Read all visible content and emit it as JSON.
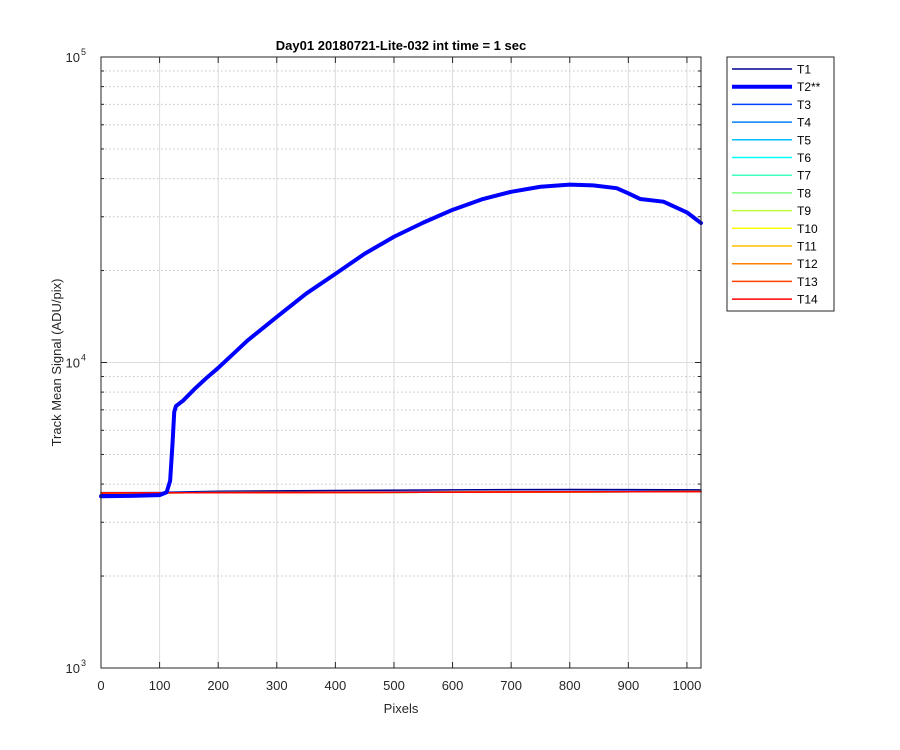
{
  "chart_data": {
    "type": "line",
    "title": "Day01 20180721-Lite-032 int time = 1 sec",
    "xlabel": "Pixels",
    "ylabel": "Track Mean Signal (ADU/pix)",
    "xlim": [
      0,
      1024
    ],
    "ylim": [
      1000,
      100000
    ],
    "yscale": "log",
    "grid": true,
    "legend_position": "outside-top-right",
    "x_ticks": [
      0,
      100,
      200,
      300,
      400,
      500,
      600,
      700,
      800,
      900,
      1000
    ],
    "x_tick_labels": [
      "0",
      "100",
      "200",
      "300",
      "400",
      "500",
      "600",
      "700",
      "800",
      "900",
      "1000"
    ],
    "y_tick_labels": [
      {
        "value": 1000,
        "base": "10",
        "exp": "3"
      },
      {
        "value": 10000,
        "base": "10",
        "exp": "4"
      },
      {
        "value": 100000,
        "base": "10",
        "exp": "5"
      }
    ],
    "series": [
      {
        "name": "T1",
        "color": "#00008f",
        "width": 1.5,
        "x": [
          0,
          100,
          112,
          200,
          400,
          600,
          800,
          1024
        ],
        "y": [
          3700,
          3720,
          3760,
          3790,
          3810,
          3830,
          3840,
          3830
        ]
      },
      {
        "name": "T2**",
        "color": "#0000ff",
        "width": 4,
        "x": [
          0,
          50,
          100,
          112,
          118,
          122,
          125,
          128,
          140,
          160,
          180,
          200,
          250,
          300,
          350,
          400,
          450,
          500,
          550,
          600,
          650,
          700,
          750,
          800,
          840,
          880,
          900,
          920,
          960,
          1000,
          1024
        ],
        "y": [
          3650,
          3660,
          3680,
          3760,
          4100,
          5400,
          6900,
          7200,
          7500,
          8200,
          8900,
          9600,
          11800,
          14100,
          16800,
          19500,
          22700,
          25800,
          28700,
          31600,
          34200,
          36200,
          37600,
          38200,
          38000,
          37200,
          35800,
          34300,
          33600,
          31000,
          28600
        ]
      },
      {
        "name": "T3",
        "color": "#0040ff",
        "width": 1.5,
        "x": [
          0,
          1024
        ],
        "y": [
          3750,
          3790
        ]
      },
      {
        "name": "T4",
        "color": "#0080ff",
        "width": 1.5,
        "x": [
          0,
          1024
        ],
        "y": [
          3740,
          3780
        ]
      },
      {
        "name": "T5",
        "color": "#00bfff",
        "width": 1.5,
        "x": [
          0,
          1024
        ],
        "y": [
          3740,
          3780
        ]
      },
      {
        "name": "T6",
        "color": "#00ffff",
        "width": 1.5,
        "x": [
          0,
          1024
        ],
        "y": [
          3740,
          3780
        ]
      },
      {
        "name": "T7",
        "color": "#40ffbf",
        "width": 1.5,
        "x": [
          0,
          1024
        ],
        "y": [
          3740,
          3780
        ]
      },
      {
        "name": "T8",
        "color": "#80ff80",
        "width": 1.5,
        "x": [
          0,
          1024
        ],
        "y": [
          3740,
          3780
        ]
      },
      {
        "name": "T9",
        "color": "#bfff40",
        "width": 1.5,
        "x": [
          0,
          1024
        ],
        "y": [
          3740,
          3780
        ]
      },
      {
        "name": "T10",
        "color": "#ffff00",
        "width": 1.5,
        "x": [
          0,
          1024
        ],
        "y": [
          3740,
          3780
        ]
      },
      {
        "name": "T11",
        "color": "#ffbf00",
        "width": 1.5,
        "x": [
          0,
          1024
        ],
        "y": [
          3740,
          3780
        ]
      },
      {
        "name": "T12",
        "color": "#ff8000",
        "width": 1.5,
        "x": [
          0,
          1024
        ],
        "y": [
          3740,
          3780
        ]
      },
      {
        "name": "T13",
        "color": "#ff4000",
        "width": 1.5,
        "x": [
          0,
          1024
        ],
        "y": [
          3740,
          3780
        ]
      },
      {
        "name": "T14",
        "color": "#ff0000",
        "width": 1.5,
        "x": [
          0,
          1024
        ],
        "y": [
          3740,
          3780
        ]
      }
    ]
  }
}
